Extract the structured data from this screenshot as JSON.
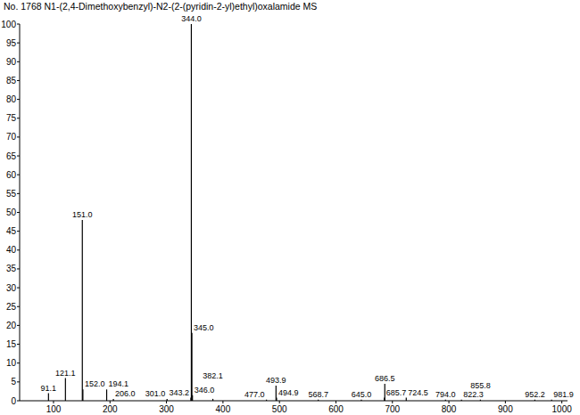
{
  "chart_data": {
    "type": "bar",
    "title": "No. 1768 N1-(2,4-Dimethoxybenzyl)-N2-(2-(pyridin-2-yl)ethyl)oxalamide MS",
    "x": [
      91.1,
      121.1,
      151.0,
      152.0,
      194.1,
      206.0,
      301.0,
      343.2,
      344.0,
      345.0,
      346.0,
      382.1,
      477.0,
      493.9,
      494.9,
      568.7,
      645.0,
      685.7,
      686.5,
      724.5,
      794.0,
      822.3,
      855.8,
      952.2,
      981.9
    ],
    "x_labels": [
      "91.1",
      "121.1",
      "151.0",
      "152.0",
      "194.1",
      "206.0",
      "301.0",
      "343.2",
      "344.0",
      "345.0",
      "346.0",
      "382.1",
      "477.0",
      "493.9",
      "494.9",
      "568.7",
      "645.0",
      "685.7",
      "686.5",
      "724.5",
      "794.0",
      "822.3",
      "855.8",
      "952.2",
      "981.9"
    ],
    "values": [
      2,
      6,
      48,
      3,
      3,
      0.5,
      0.5,
      0.8,
      100,
      18,
      1.5,
      0.5,
      0.3,
      4,
      0.8,
      0.3,
      0.3,
      0.8,
      4.5,
      0.8,
      0.3,
      0.3,
      0.3,
      0.3,
      0.3
    ],
    "color": "#000000",
    "xlim": [
      40,
      1010
    ],
    "ylim": [
      0,
      100
    ],
    "xticks": [
      100,
      200,
      300,
      400,
      500,
      600,
      700,
      800,
      900,
      1000
    ],
    "yticks": [
      0,
      5,
      10,
      15,
      20,
      25,
      30,
      35,
      40,
      45,
      50,
      55,
      60,
      65,
      70,
      75,
      80,
      85,
      90,
      95,
      100
    ],
    "data_labels": true,
    "grid": false
  }
}
